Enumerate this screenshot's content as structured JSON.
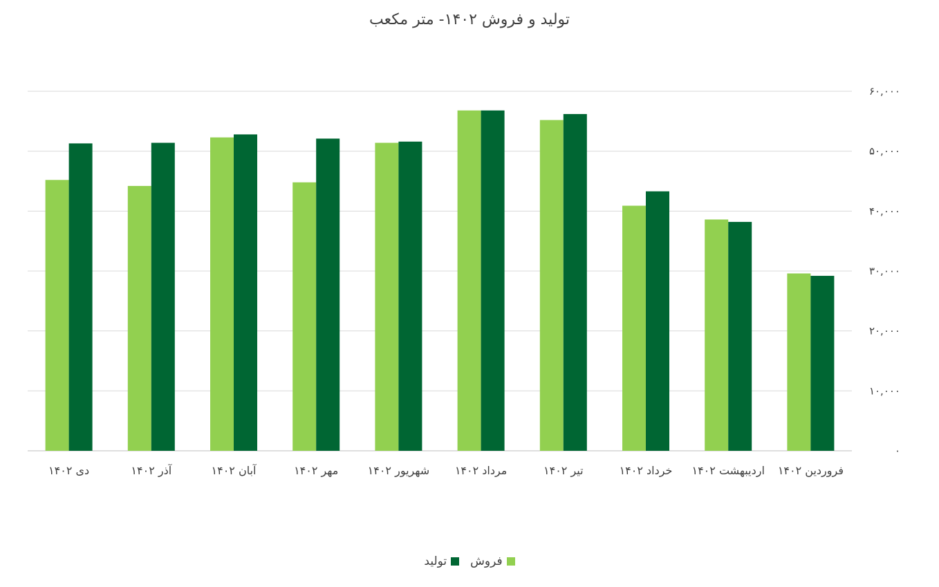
{
  "chart_data": {
    "type": "bar",
    "title": "تولید و فروش ۱۴۰۲- متر مکعب",
    "categories": [
      "دی ۱۴۰۲",
      "آذر ۱۴۰۲",
      "آبان ۱۴۰۲",
      "مهر ۱۴۰۲",
      "شهریور ۱۴۰۲",
      "مرداد ۱۴۰۲",
      "تیر ۱۴۰۲",
      "خرداد ۱۴۰۲",
      "اردیبهشت ۱۴۰۲",
      "فروردین ۱۴۰۲"
    ],
    "series": [
      {
        "name": "تولید",
        "color": "#006633",
        "values": [
          51300,
          51400,
          52800,
          52100,
          51600,
          56800,
          56200,
          43300,
          38200,
          29200
        ]
      },
      {
        "name": "فروش",
        "color": "#92d050",
        "values": [
          45200,
          44200,
          52300,
          44800,
          51400,
          56800,
          55200,
          40900,
          38600,
          29600
        ]
      }
    ],
    "y_ticks": [
      "۰",
      "۱۰,۰۰۰",
      "۲۰,۰۰۰",
      "۳۰,۰۰۰",
      "۴۰,۰۰۰",
      "۵۰,۰۰۰",
      "۶۰,۰۰۰"
    ],
    "ylim": [
      0,
      60000
    ],
    "y_axis_side": "right",
    "grid": true,
    "legend_position": "bottom"
  }
}
